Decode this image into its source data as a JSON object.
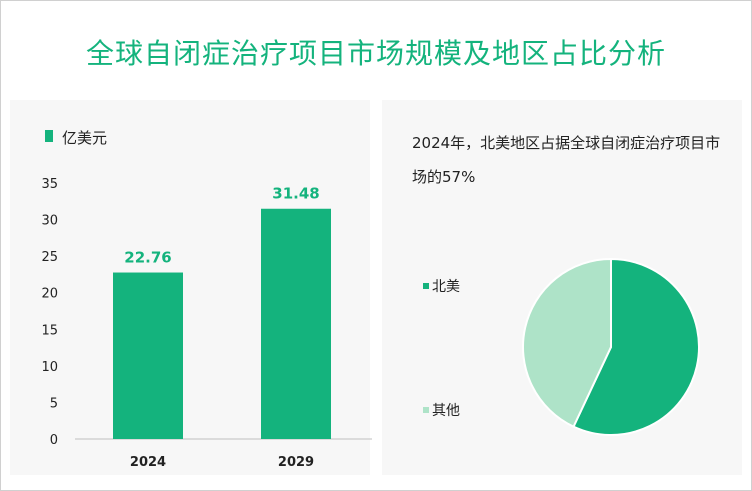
{
  "title": "全球自闭症治疗项目市场规模及地区占比分析",
  "colors": {
    "accent": "#14b37d",
    "light": "#aee3c8"
  },
  "bar_legend": "亿美元",
  "pie_caption": "2024年，北美地区占据全球自闭症治疗项目市场的57%",
  "pie_legend": [
    "北美",
    "其他"
  ],
  "chart_data": [
    {
      "type": "bar",
      "categories": [
        "2024",
        "2029"
      ],
      "values": [
        22.76,
        31.48
      ],
      "data_labels": [
        "22.76",
        "31.48"
      ],
      "ylim": [
        0,
        35
      ],
      "yticks": [
        0,
        5,
        10,
        15,
        20,
        25,
        30,
        35
      ],
      "series": [
        {
          "name": "亿美元",
          "values": [
            22.76,
            31.48
          ]
        }
      ],
      "grid": false
    },
    {
      "type": "pie",
      "labels": [
        "北美",
        "其他"
      ],
      "values": [
        57,
        43
      ],
      "colors": [
        "#14b37d",
        "#aee3c8"
      ]
    }
  ]
}
